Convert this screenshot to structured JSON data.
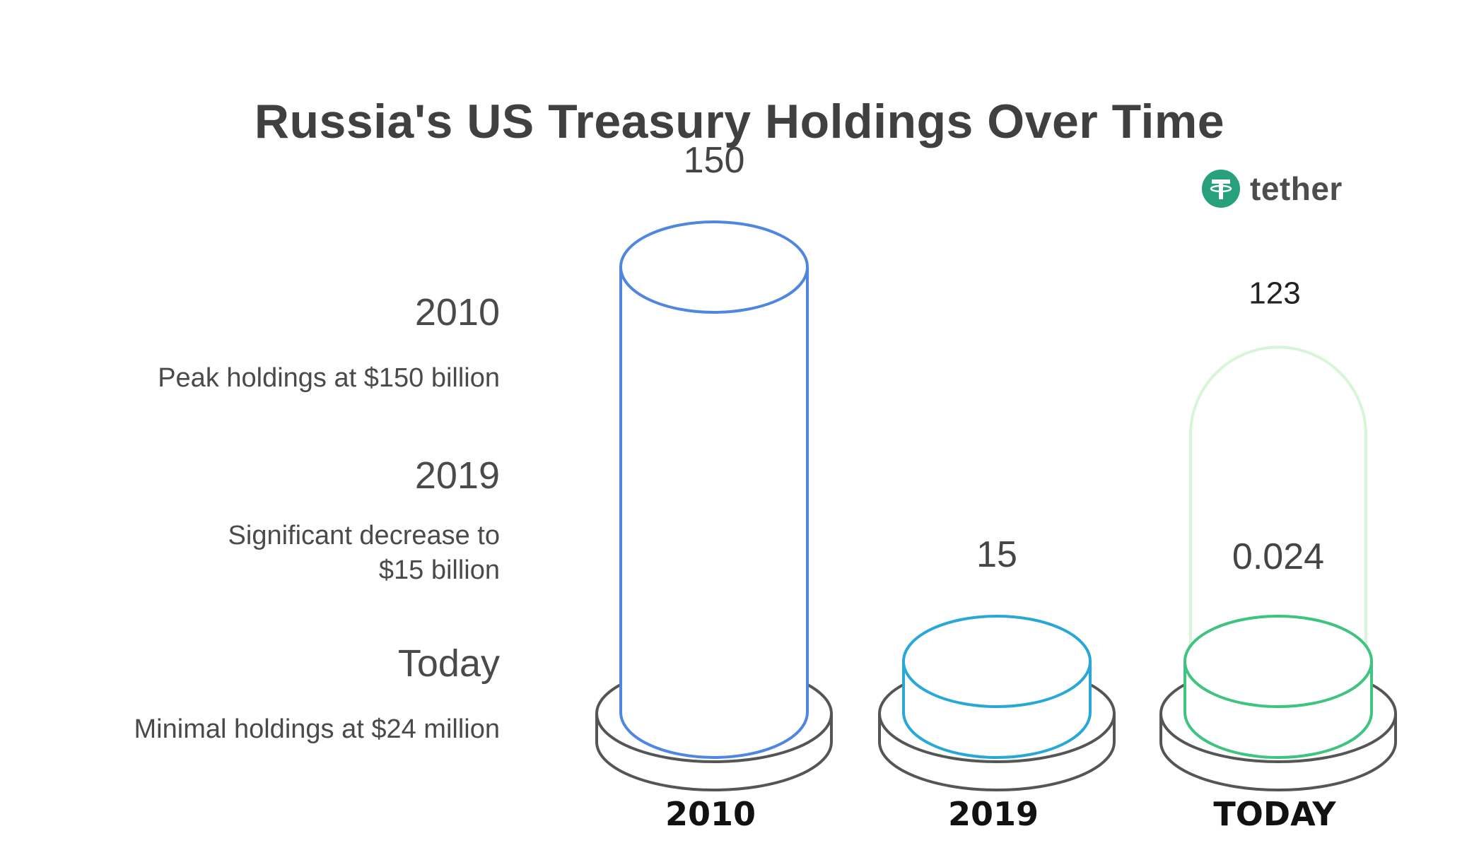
{
  "chart_data": {
    "type": "bar",
    "title": "Russia's US Treasury Holdings Over Time",
    "categories": [
      "2010",
      "2019",
      "TODAY"
    ],
    "values": [
      150,
      15,
      0.024
    ],
    "value_labels": [
      "150",
      "15",
      "0.024"
    ],
    "ghost_value": 123,
    "ghost_value_label": "123",
    "colors": {
      "2010": "#4f86df",
      "2019": "#29a8d8",
      "TODAY": "#3fc47f",
      "ghost": "#d7f6d7",
      "platform": "#555555"
    }
  },
  "legend": [
    {
      "year": "2010",
      "desc": "Peak holdings at $150 billion"
    },
    {
      "year": "2019",
      "desc": "Significant decrease to $15 billion"
    },
    {
      "year": "Today",
      "desc": "Minimal holdings at $24 million"
    }
  ],
  "logo": {
    "word": "tether",
    "icon": "tether-logo-icon",
    "color": "#26a17b"
  }
}
